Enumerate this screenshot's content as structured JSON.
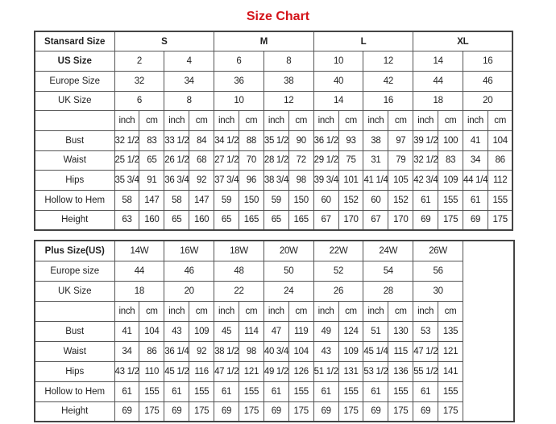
{
  "title": "Size Chart",
  "standard": {
    "header_label": "Stansard Size",
    "groups": [
      "S",
      "M",
      "L",
      "XL"
    ],
    "us_label": "US Size",
    "us": [
      "2",
      "4",
      "6",
      "8",
      "10",
      "12",
      "14",
      "16"
    ],
    "europe_label": "Europe Size",
    "europe": [
      "32",
      "34",
      "36",
      "38",
      "40",
      "42",
      "44",
      "46"
    ],
    "uk_label": "UK Size",
    "uk": [
      "6",
      "8",
      "10",
      "12",
      "14",
      "16",
      "18",
      "20"
    ],
    "units": [
      "inch",
      "cm"
    ],
    "measurements": [
      {
        "label": "Bust",
        "values": [
          "32 1/2",
          "83",
          "33 1/2",
          "84",
          "34 1/2",
          "88",
          "35 1/2",
          "90",
          "36 1/2",
          "93",
          "38",
          "97",
          "39 1/2",
          "100",
          "41",
          "104"
        ]
      },
      {
        "label": "Waist",
        "values": [
          "25 1/2",
          "65",
          "26 1/2",
          "68",
          "27 1/2",
          "70",
          "28 1/2",
          "72",
          "29 1/2",
          "75",
          "31",
          "79",
          "32 1/2",
          "83",
          "34",
          "86"
        ]
      },
      {
        "label": "Hips",
        "values": [
          "35 3/4",
          "91",
          "36 3/4",
          "92",
          "37 3/4",
          "96",
          "38 3/4",
          "98",
          "39 3/4",
          "101",
          "41 1/4",
          "105",
          "42 3/4",
          "109",
          "44 1/4",
          "112"
        ]
      },
      {
        "label": "Hollow to Hem",
        "values": [
          "58",
          "147",
          "58",
          "147",
          "59",
          "150",
          "59",
          "150",
          "60",
          "152",
          "60",
          "152",
          "61",
          "155",
          "61",
          "155"
        ]
      },
      {
        "label": "Height",
        "values": [
          "63",
          "160",
          "65",
          "160",
          "65",
          "165",
          "65",
          "165",
          "67",
          "170",
          "67",
          "170",
          "69",
          "175",
          "69",
          "175"
        ]
      }
    ]
  },
  "plus": {
    "header_label": "Plus Size(US)",
    "us": [
      "14W",
      "16W",
      "18W",
      "20W",
      "22W",
      "24W",
      "26W"
    ],
    "europe_label": "Europe size",
    "europe": [
      "44",
      "46",
      "48",
      "50",
      "52",
      "54",
      "56"
    ],
    "uk_label": "UK Size",
    "uk": [
      "18",
      "20",
      "22",
      "24",
      "26",
      "28",
      "30"
    ],
    "units": [
      "inch",
      "cm"
    ],
    "measurements": [
      {
        "label": "Bust",
        "values": [
          "41",
          "104",
          "43",
          "109",
          "45",
          "114",
          "47",
          "119",
          "49",
          "124",
          "51",
          "130",
          "53",
          "135"
        ]
      },
      {
        "label": "Waist",
        "values": [
          "34",
          "86",
          "36 1/4",
          "92",
          "38 1/2",
          "98",
          "40 3/4",
          "104",
          "43",
          "109",
          "45 1/4",
          "115",
          "47 1/2",
          "121"
        ]
      },
      {
        "label": "Hips",
        "values": [
          "43 1/2",
          "110",
          "45 1/2",
          "116",
          "47 1/2",
          "121",
          "49 1/2",
          "126",
          "51 1/2",
          "131",
          "53 1/2",
          "136",
          "55 1/2",
          "141"
        ]
      },
      {
        "label": "Hollow to Hem",
        "values": [
          "61",
          "155",
          "61",
          "155",
          "61",
          "155",
          "61",
          "155",
          "61",
          "155",
          "61",
          "155",
          "61",
          "155"
        ]
      },
      {
        "label": "Height",
        "values": [
          "69",
          "175",
          "69",
          "175",
          "69",
          "175",
          "69",
          "175",
          "69",
          "175",
          "69",
          "175",
          "69",
          "175"
        ]
      }
    ]
  }
}
